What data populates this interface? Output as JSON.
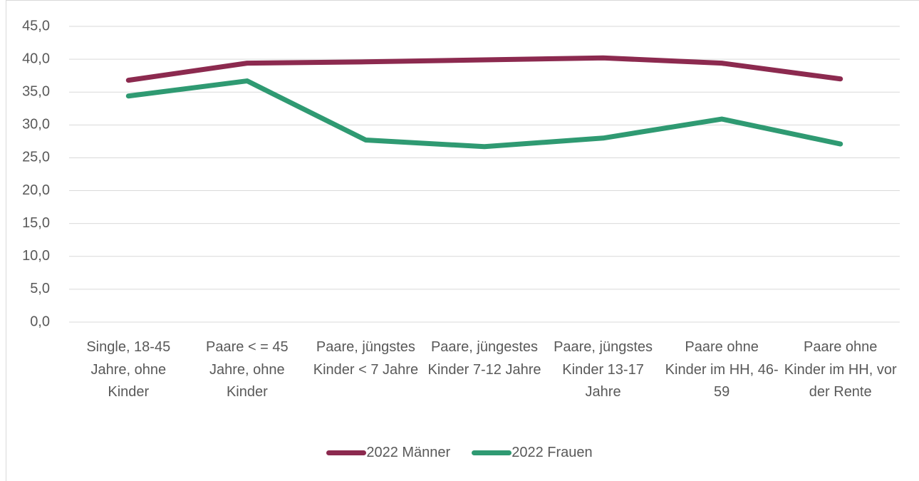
{
  "chart_data": {
    "type": "line",
    "categories": [
      "Single, 18-45 Jahre, ohne Kinder",
      "Paare < = 45 Jahre, ohne Kinder",
      "Paare, jüngstes Kinder < 7 Jahre",
      "Paare, jüngestes Kinder 7-12 Jahre",
      "Paare, jüngstes Kinder 13-17 Jahre",
      "Paare ohne Kinder im HH, 46-59",
      "Paare ohne Kinder im HH, vor der Rente"
    ],
    "series": [
      {
        "name": "2022 Männer",
        "color": "#8c2a4f",
        "values": [
          36.8,
          39.4,
          39.6,
          39.9,
          40.2,
          39.4,
          37.0
        ]
      },
      {
        "name": "2022 Frauen",
        "color": "#2f9a72",
        "values": [
          34.4,
          36.7,
          27.7,
          26.7,
          28.0,
          30.9,
          27.1
        ]
      }
    ],
    "ylim": [
      0,
      45
    ],
    "yticks": [
      {
        "value": 0,
        "label": "0,0"
      },
      {
        "value": 5,
        "label": "5,0"
      },
      {
        "value": 10,
        "label": "10,0"
      },
      {
        "value": 15,
        "label": "15,0"
      },
      {
        "value": 20,
        "label": "20,0"
      },
      {
        "value": 25,
        "label": "25,0"
      },
      {
        "value": 30,
        "label": "30,0"
      },
      {
        "value": 35,
        "label": "35,0"
      },
      {
        "value": 40,
        "label": "40,0"
      },
      {
        "value": 45,
        "label": "45,0"
      }
    ],
    "grid": true,
    "legend": "bottom"
  }
}
